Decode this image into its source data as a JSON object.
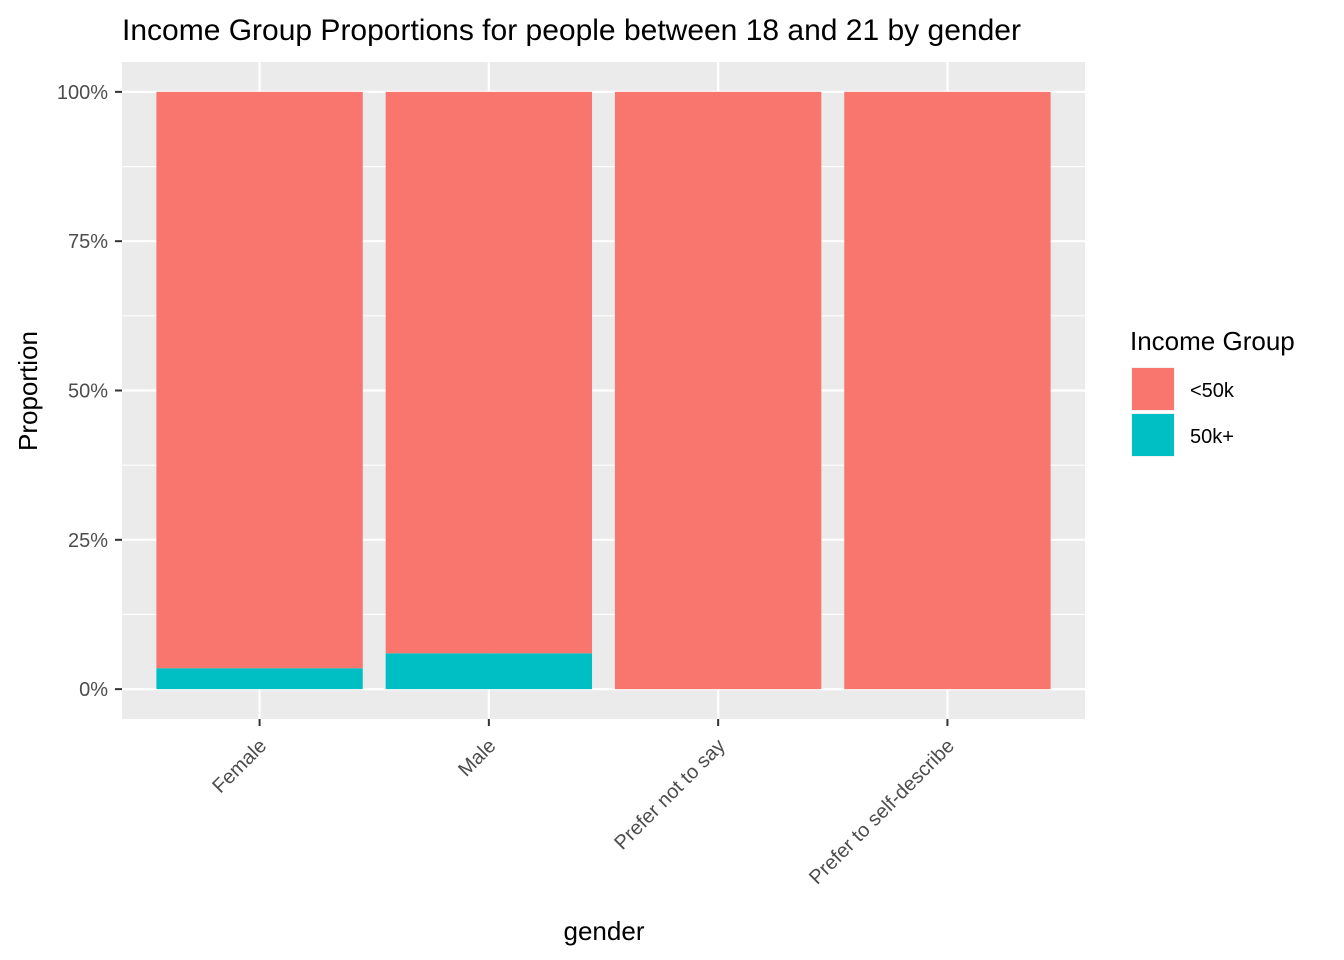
{
  "chart_data": {
    "type": "bar",
    "stacked": true,
    "title": "Income Group Proportions for people between 18 and 21 by gender",
    "xlabel": "gender",
    "ylabel": "Proportion",
    "categories": [
      "Female",
      "Male",
      "Prefer not to say",
      "Prefer to self-describe"
    ],
    "series": [
      {
        "name": "<50k",
        "values": [
          0.965,
          0.94,
          1.0,
          1.0
        ]
      },
      {
        "name": "50k+",
        "values": [
          0.035,
          0.06,
          0.0,
          0.0
        ]
      }
    ],
    "yticks": [
      0,
      0.25,
      0.5,
      0.75,
      1.0
    ],
    "ytick_labels": [
      "0%",
      "25%",
      "50%",
      "75%",
      "100%"
    ],
    "ylim": [
      -0.05,
      1.05
    ],
    "grid": true,
    "legend": {
      "title": "Income Group",
      "position": "right",
      "entries": [
        "<50k",
        "50k+"
      ]
    },
    "colors": {
      "<50k": "#F8766D",
      "50k+": "#00BFC4",
      "panel_background": "#EBEBEB",
      "grid": "#FFFFFF"
    }
  }
}
